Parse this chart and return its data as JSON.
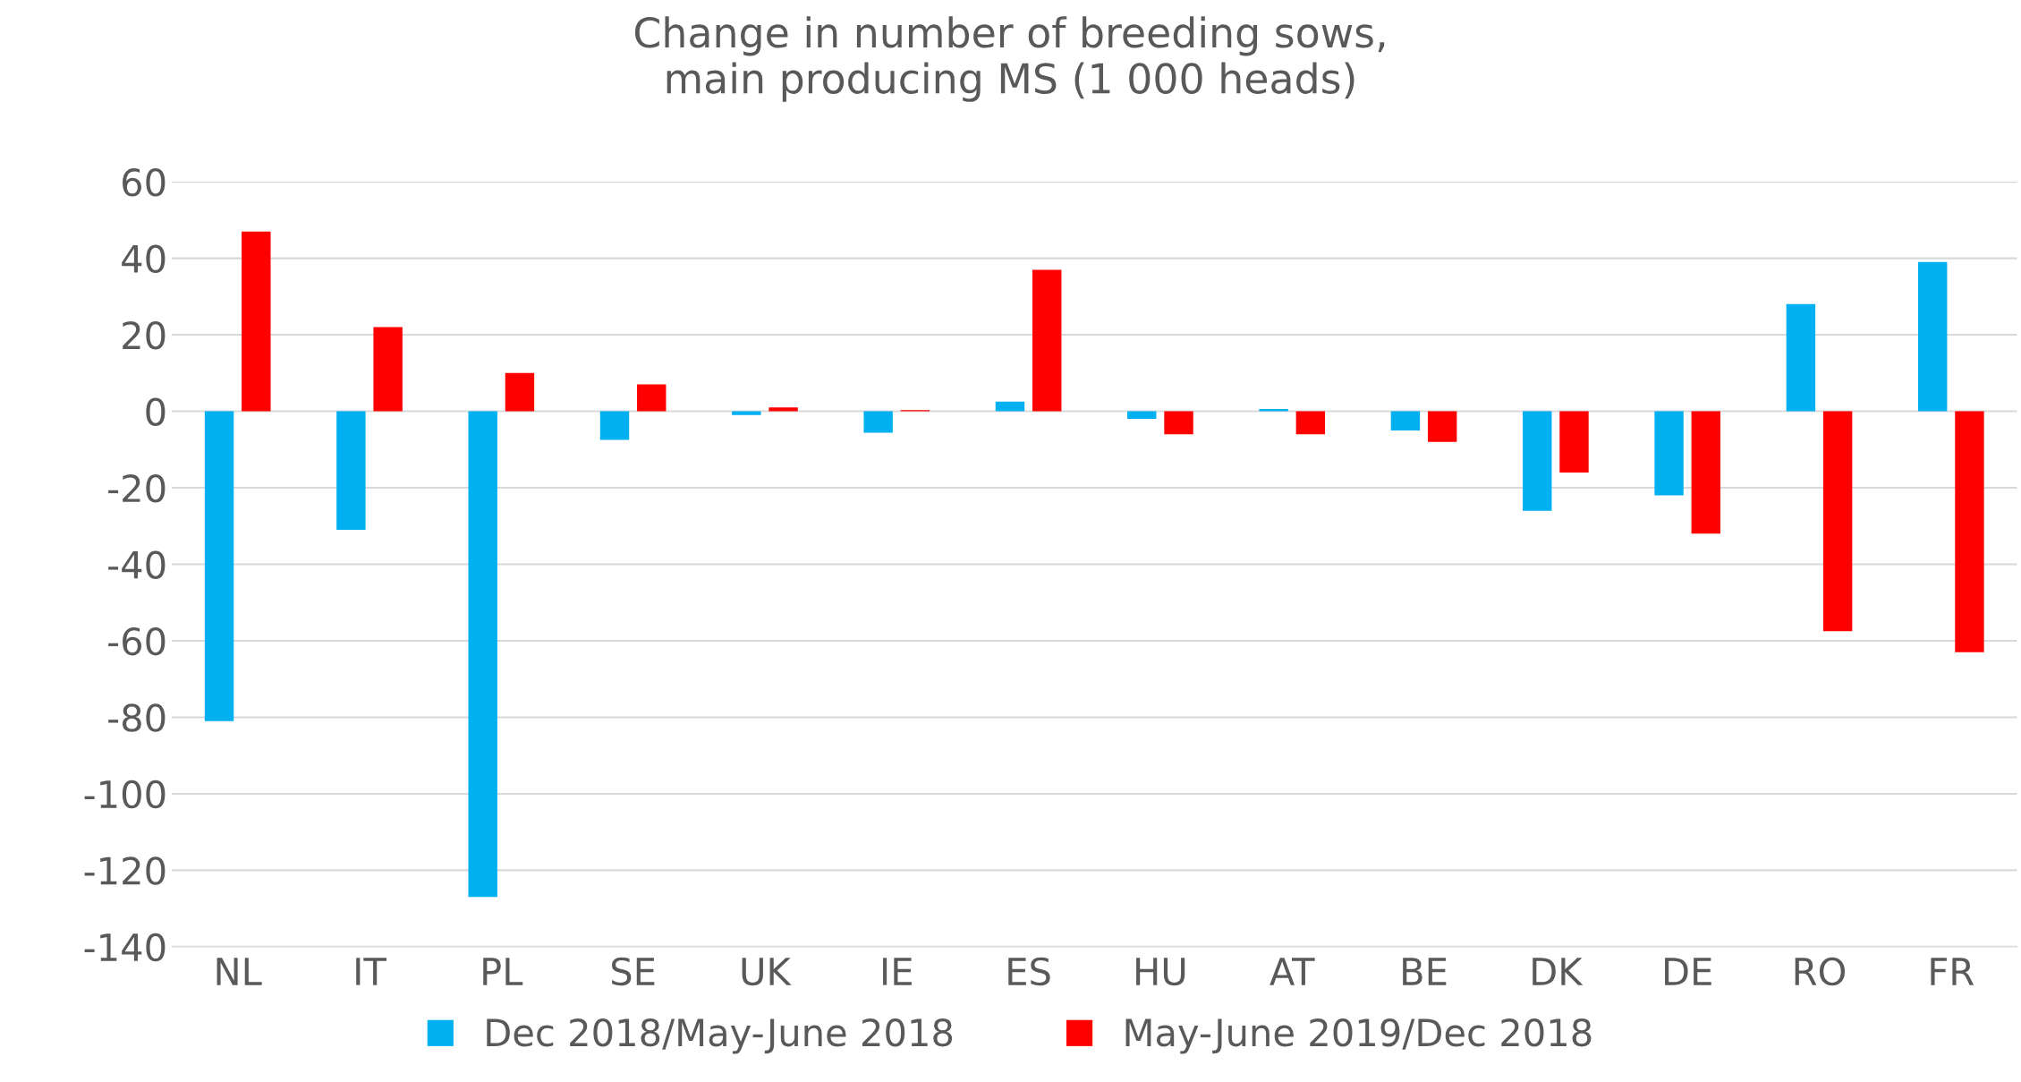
{
  "chart_data": {
    "type": "bar",
    "title": "Change in number of breeding sows,\nmain producing MS (1 000 heads)",
    "categories": [
      "NL",
      "IT",
      "PL",
      "SE",
      "UK",
      "IE",
      "ES",
      "HU",
      "AT",
      "BE",
      "DK",
      "DE",
      "RO",
      "FR"
    ],
    "series": [
      {
        "name": "Dec 2018/May-June 2018",
        "color": "#00b0f0",
        "values": [
          -81,
          -31,
          -127,
          -7.5,
          -1,
          -5.6,
          2.5,
          -2,
          0.6,
          -5,
          -26,
          -22,
          28,
          39
        ]
      },
      {
        "name": "May-June 2019/Dec 2018",
        "color": "#ff0000",
        "values": [
          47,
          22,
          10,
          7,
          1,
          0.3,
          37,
          -6,
          -6,
          -8,
          -16,
          -32,
          -57.5,
          -63
        ]
      }
    ],
    "ylim": [
      -140,
      60
    ],
    "yticks": [
      {
        "value": -140,
        "label": "-140"
      },
      {
        "value": -120,
        "label": "-120"
      },
      {
        "value": -100,
        "label": "-100"
      },
      {
        "value": -80,
        "label": "-80"
      },
      {
        "value": -60,
        "label": "-60"
      },
      {
        "value": -40,
        "label": "-40"
      },
      {
        "value": -20,
        "label": "-20"
      },
      0,
      20,
      40,
      60
    ],
    "grid": "y",
    "legend": "bottom"
  }
}
